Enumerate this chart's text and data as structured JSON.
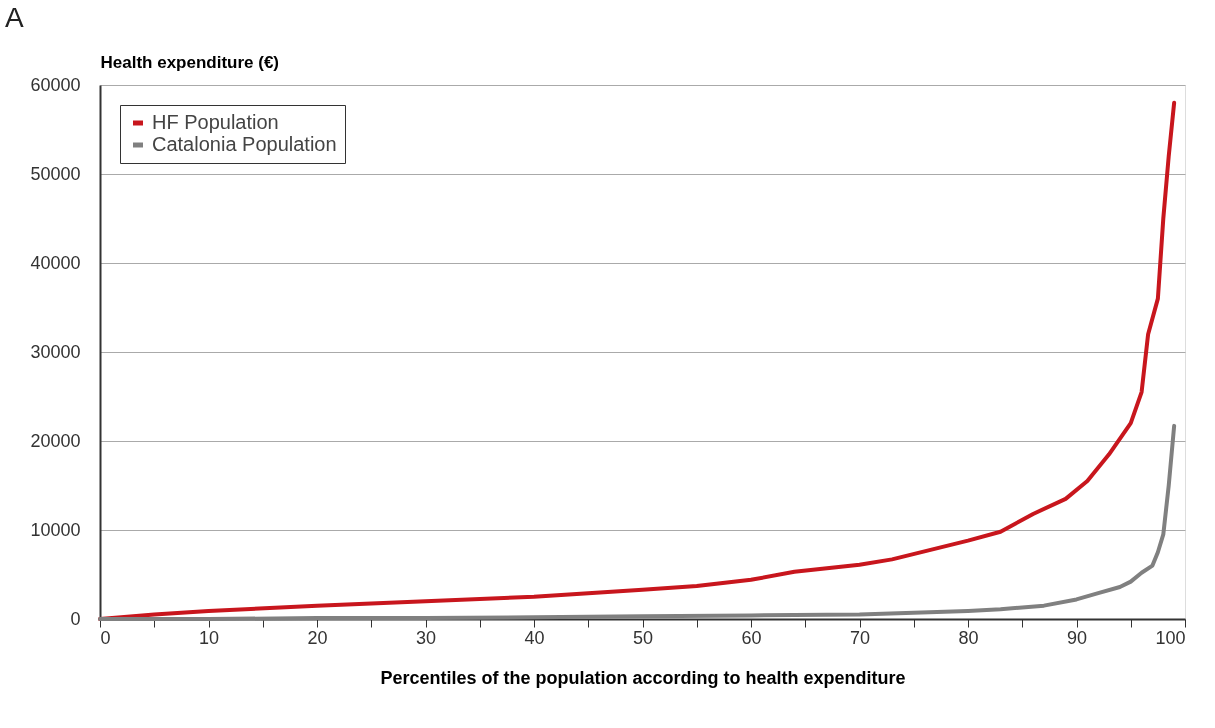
{
  "chart_data": {
    "type": "line",
    "xlabel": "Percentiles of the population according to health expenditure",
    "ylabel": "Health expenditure (€)",
    "annotations": [
      "A"
    ],
    "xlim": [
      0,
      100
    ],
    "xticks": [
      0,
      {
        "value": 5,
        "label": null
      },
      10,
      {
        "value": 15,
        "label": null
      },
      20,
      {
        "value": 25,
        "label": null
      },
      30,
      {
        "value": 35,
        "label": null
      },
      40,
      {
        "value": 45,
        "label": null
      },
      50,
      {
        "value": 55,
        "label": null
      },
      60,
      {
        "value": 65,
        "label": null
      },
      70,
      {
        "value": 75,
        "label": null
      },
      80,
      {
        "value": 85,
        "label": null
      },
      90,
      {
        "value": 95,
        "label": null
      },
      100
    ],
    "ylim": [
      0,
      60000
    ],
    "yticks": [
      0,
      10000,
      20000,
      30000,
      40000,
      50000,
      60000
    ],
    "grid": "y",
    "legend": "top left",
    "line_style": "solid",
    "marker": "none",
    "series": [
      {
        "name": "HF Population",
        "color": "#c8161d",
        "x": [
          0,
          5,
          10,
          20,
          30,
          40,
          50,
          55,
          60,
          64,
          70,
          73,
          80,
          83,
          86,
          89,
          91,
          93,
          95,
          96,
          96.6,
          97.5,
          98,
          98.5,
          99
        ],
        "values": [
          0,
          500,
          900,
          1500,
          2000,
          2500,
          3300,
          3700,
          4400,
          5300,
          6100,
          6700,
          8800,
          9800,
          11800,
          13500,
          15500,
          18500,
          22000,
          25500,
          32000,
          36000,
          45000,
          52000,
          58000
        ]
      },
      {
        "name": "Catalonia Population",
        "color": "#808080",
        "x": [
          0,
          10,
          20,
          30,
          40,
          50,
          60,
          70,
          80,
          83,
          87,
          90,
          92,
          94,
          95,
          96,
          97,
          97.5,
          98,
          98.5,
          99
        ],
        "values": [
          0,
          0,
          100,
          100,
          200,
          300,
          400,
          500,
          900,
          1100,
          1500,
          2200,
          2900,
          3600,
          4200,
          5200,
          6000,
          7500,
          9500,
          15000,
          21700
        ]
      }
    ]
  }
}
